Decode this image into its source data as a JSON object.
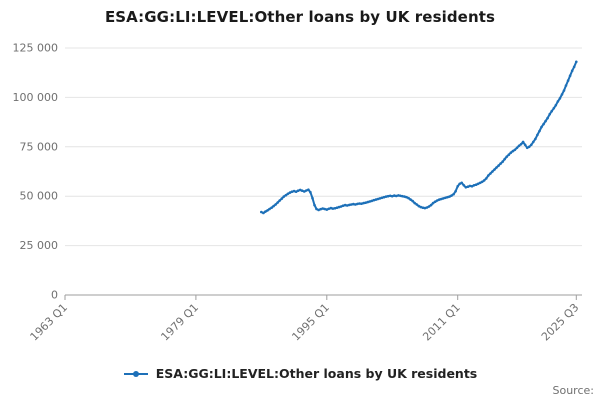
{
  "title": "ESA:GG:LI:LEVEL:Other loans by UK residents",
  "source_label": "Source:",
  "legend": {
    "label": "ESA:GG:LI:LEVEL:Other loans by UK residents"
  },
  "chart_data": {
    "type": "line",
    "title": "ESA:GG:LI:LEVEL:Other loans by UK residents",
    "xlabel": "",
    "ylabel": "",
    "ylim": [
      0,
      125000
    ],
    "x_domain_years": [
      1963.0,
      2026.2
    ],
    "grid": "horizontal",
    "legend_position": "bottom",
    "color": "#1d70b8",
    "axis_color": "#9e9e9e",
    "gridline_color": "#e4e4e4",
    "yticks": [
      {
        "v": 0,
        "label": "0"
      },
      {
        "v": 25000,
        "label": "25 000"
      },
      {
        "v": 50000,
        "label": "50 000"
      },
      {
        "v": 75000,
        "label": "75 000"
      },
      {
        "v": 100000,
        "label": "100 000"
      },
      {
        "v": 125000,
        "label": "125 000"
      }
    ],
    "xticks": [
      {
        "t": 1963.0,
        "label": "1963 Q1"
      },
      {
        "t": 1979.0,
        "label": "1979 Q1"
      },
      {
        "t": 1995.0,
        "label": "1995 Q1"
      },
      {
        "t": 2011.0,
        "label": "2011 Q1"
      },
      {
        "t": 2025.5,
        "label": "2025 Q3"
      }
    ],
    "series": [
      {
        "name": "ESA:GG:LI:LEVEL:Other loans by UK residents",
        "start_period": "1987 Q1",
        "end_period": "2025 Q3",
        "t_start": 1987.0,
        "frequency": "quarterly",
        "values": [
          42000,
          41500,
          42200,
          42800,
          43500,
          44200,
          45000,
          45800,
          46800,
          47800,
          48800,
          49800,
          50500,
          51200,
          51800,
          52300,
          52600,
          52300,
          52800,
          53200,
          52800,
          52400,
          52900,
          53300,
          52000,
          49000,
          45500,
          43500,
          43000,
          43400,
          43800,
          43500,
          43200,
          43600,
          44000,
          43700,
          43900,
          44200,
          44500,
          44800,
          45200,
          45500,
          45300,
          45600,
          45800,
          46000,
          45800,
          46100,
          46300,
          46200,
          46500,
          46700,
          47000,
          47300,
          47600,
          48000,
          48300,
          48600,
          48900,
          49200,
          49500,
          49800,
          50000,
          50200,
          50000,
          50300,
          50100,
          50400,
          50200,
          50000,
          49800,
          49500,
          49000,
          48300,
          47500,
          46500,
          45800,
          45000,
          44500,
          44200,
          44000,
          44300,
          44800,
          45500,
          46500,
          47200,
          47800,
          48300,
          48600,
          48900,
          49200,
          49500,
          49800,
          50300,
          51000,
          52500,
          55000,
          56300,
          56800,
          55500,
          54500,
          54800,
          55200,
          55000,
          55500,
          55800,
          56300,
          56800,
          57300,
          58000,
          59000,
          60500,
          61500,
          62500,
          63500,
          64500,
          65500,
          66500,
          67500,
          68800,
          70000,
          71000,
          72000,
          72800,
          73500,
          74500,
          75500,
          76300,
          77500,
          76000,
          74500,
          75000,
          76000,
          77500,
          79000,
          81000,
          83000,
          85000,
          86500,
          88000,
          89500,
          91500,
          93000,
          94500,
          96000,
          98000,
          99500,
          101500,
          103500,
          106000,
          108500,
          111000,
          113500,
          115500,
          118000
        ]
      }
    ]
  }
}
